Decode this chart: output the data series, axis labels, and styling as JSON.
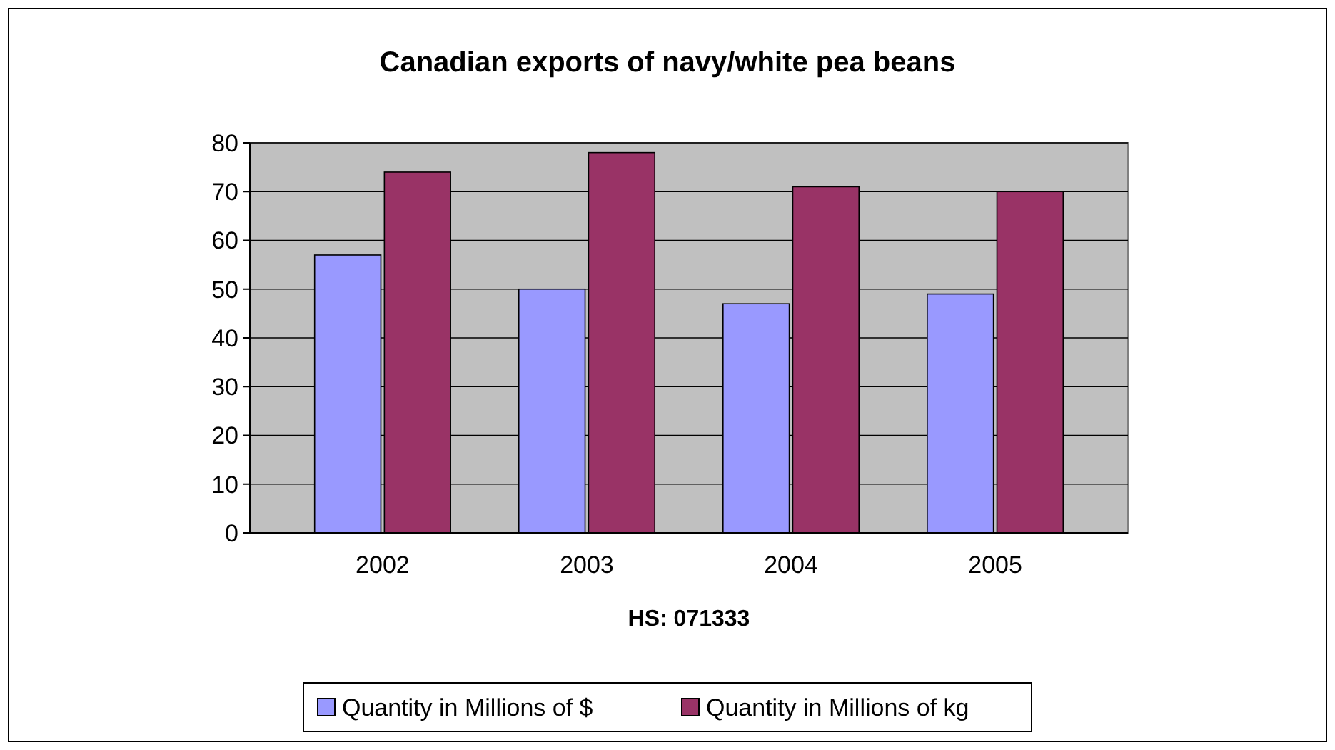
{
  "chart_data": {
    "type": "bar",
    "title": "Canadian exports of navy/white pea beans",
    "xlabel": "HS: 071333",
    "categories": [
      "2002",
      "2003",
      "2004",
      "2005"
    ],
    "series": [
      {
        "name": "Quantity in Millions of $",
        "color": "#9999ff",
        "values": [
          57,
          50,
          47,
          49
        ]
      },
      {
        "name": "Quantity in Millions of kg",
        "color": "#993366",
        "values": [
          74,
          78,
          71,
          70
        ]
      }
    ],
    "ylim": [
      0,
      80
    ],
    "yticks": [
      0,
      10,
      20,
      30,
      40,
      50,
      60,
      70,
      80
    ],
    "grid": "y",
    "legend": "bottom"
  }
}
